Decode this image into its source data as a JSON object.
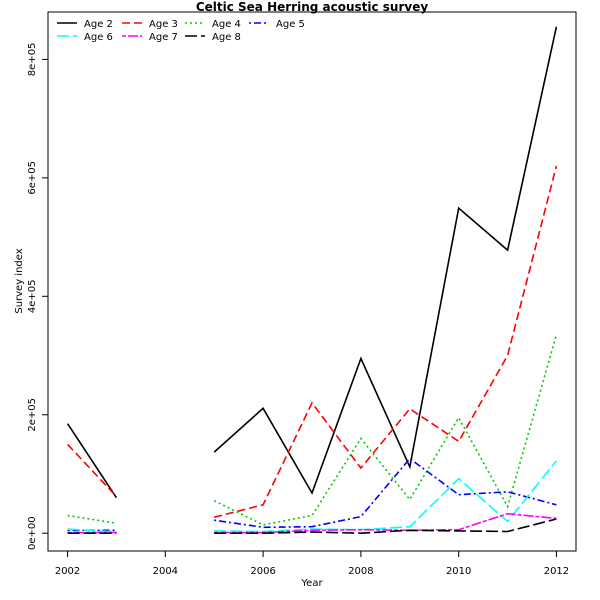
{
  "chart_data": {
    "type": "line",
    "title": "Celtic Sea Herring acoustic survey",
    "xlabel": "Year",
    "ylabel": "Survey index",
    "xlim": [
      2001.6,
      2012.4
    ],
    "ylim": [
      -30000,
      880000
    ],
    "x_ticks": [
      "2002",
      "2004",
      "2006",
      "2008",
      "2010",
      "2012"
    ],
    "y_ticks": [
      "0e+00",
      "2e+05",
      "4e+05",
      "6e+05",
      "8e+05"
    ],
    "x": [
      2002,
      2003,
      2004,
      2005,
      2006,
      2007,
      2008,
      2009,
      2010,
      2011,
      2012
    ],
    "legend_position": "top-left",
    "series": [
      {
        "name": "Age 2",
        "color": "#000000",
        "dash": "solid",
        "values": [
          185000,
          60000,
          null,
          137000,
          211000,
          68000,
          295000,
          112000,
          549000,
          478000,
          855000
        ]
      },
      {
        "name": "Age 3",
        "color": "#ff0000",
        "dash": "dashed",
        "values": [
          150000,
          62000,
          null,
          27000,
          48000,
          220000,
          110000,
          210000,
          155000,
          300000,
          620000
        ]
      },
      {
        "name": "Age 4",
        "color": "#00cd00",
        "dash": "dotted",
        "values": [
          30000,
          17000,
          null,
          55000,
          14000,
          30000,
          160000,
          57000,
          195000,
          45000,
          335000
        ]
      },
      {
        "name": "Age 5",
        "color": "#0000ff",
        "dash": "dotdash",
        "values": [
          5000,
          5000,
          null,
          22000,
          10000,
          11000,
          28000,
          126000,
          65000,
          70000,
          48000
        ]
      },
      {
        "name": "Age 6",
        "color": "#00ffff",
        "dash": "longdash",
        "values": [
          7000,
          2000,
          null,
          4000,
          3000,
          7000,
          6000,
          11000,
          92000,
          20000,
          122000
        ]
      },
      {
        "name": "Age 7",
        "color": "#ff00ff",
        "dash": "twodash",
        "values": [
          1000,
          1000,
          null,
          1000,
          1000,
          5000,
          6000,
          5000,
          6000,
          33000,
          25000
        ]
      },
      {
        "name": "Age 8",
        "color": "#000000",
        "dash": "longdash",
        "values": [
          0,
          0,
          null,
          0,
          0,
          2000,
          0,
          5000,
          4000,
          3000,
          24000
        ]
      }
    ]
  }
}
